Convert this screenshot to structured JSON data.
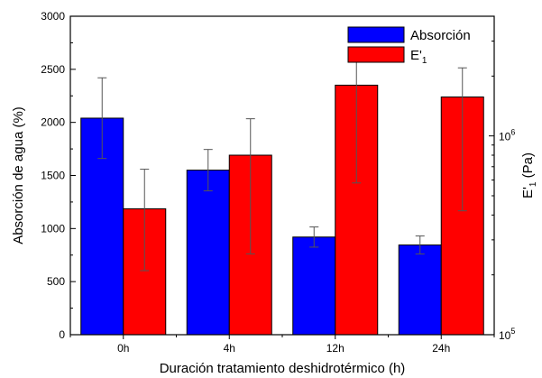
{
  "chart_data": {
    "type": "bar",
    "categories": [
      "0h",
      "4h",
      "12h",
      "24h"
    ],
    "xlabel": "Duración tratamiento deshidrotérmico (h)",
    "ylabel": "Absorción de agua (%)",
    "y2label_main": "E'",
    "y2label_sub": "1",
    "y2label_unit": " (Pa)",
    "ylim": [
      0,
      3000
    ],
    "y2lim": [
      100000,
      4000000
    ],
    "y2scale": "log",
    "yticks": [
      0,
      500,
      1000,
      1500,
      2000,
      2500,
      3000
    ],
    "y2ticks": [
      {
        "value": 100000,
        "base": "10",
        "exp": "5"
      },
      {
        "value": 1000000,
        "base": "10",
        "exp": "6"
      }
    ],
    "grid": false,
    "legend_position": "top-right",
    "series": [
      {
        "name": "Absorción",
        "axis": "left",
        "color": "#0000ff",
        "values": [
          2040,
          1550,
          920,
          845
        ],
        "errors": [
          380,
          195,
          95,
          85
        ]
      },
      {
        "name": "E'",
        "name_sub": "1",
        "axis": "right",
        "color": "#ff0000",
        "values": [
          430000,
          800000,
          1800000,
          1570000
        ],
        "err_low": [
          210000,
          255000,
          580000,
          420000
        ],
        "err_high": [
          680000,
          1220000,
          2700000,
          2200000
        ]
      }
    ]
  }
}
